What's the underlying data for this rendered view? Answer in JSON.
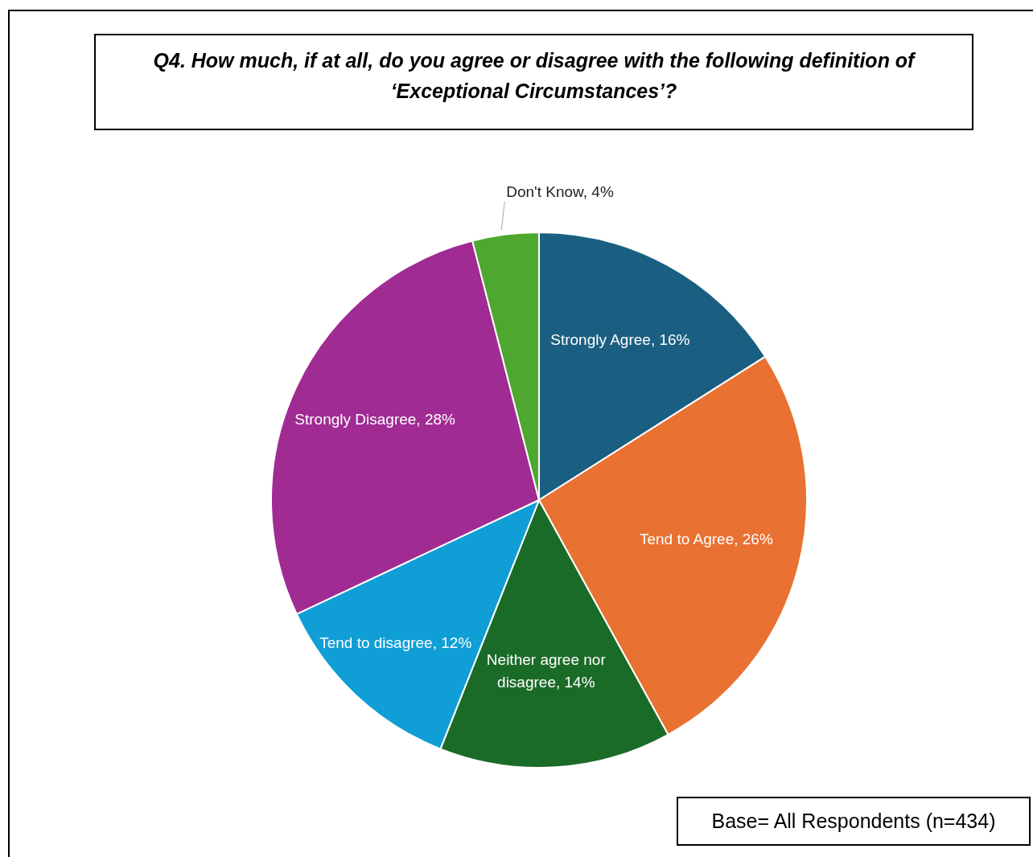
{
  "chart_data": {
    "type": "pie",
    "title": "Q4. How much, if at all, do you agree or disagree with the following definition of ‘Exceptional Circumstances’?",
    "categories": [
      "Strongly Agree",
      "Tend to Agree",
      "Neither agree nor disagree",
      "Tend to disagree",
      "Strongly Disagree",
      "Don't Know"
    ],
    "values": [
      16,
      26,
      14,
      12,
      28,
      4
    ],
    "colors": [
      "#1a5f82",
      "#e97132",
      "#1b6b28",
      "#0f9ed5",
      "#a02b93",
      "#4ea72e"
    ],
    "value_labels": [
      "16%",
      "26%",
      "14%",
      "12%",
      "28%",
      "4%"
    ],
    "legend": false,
    "annotations": [
      "Base= All Respondents (n=434)"
    ]
  }
}
